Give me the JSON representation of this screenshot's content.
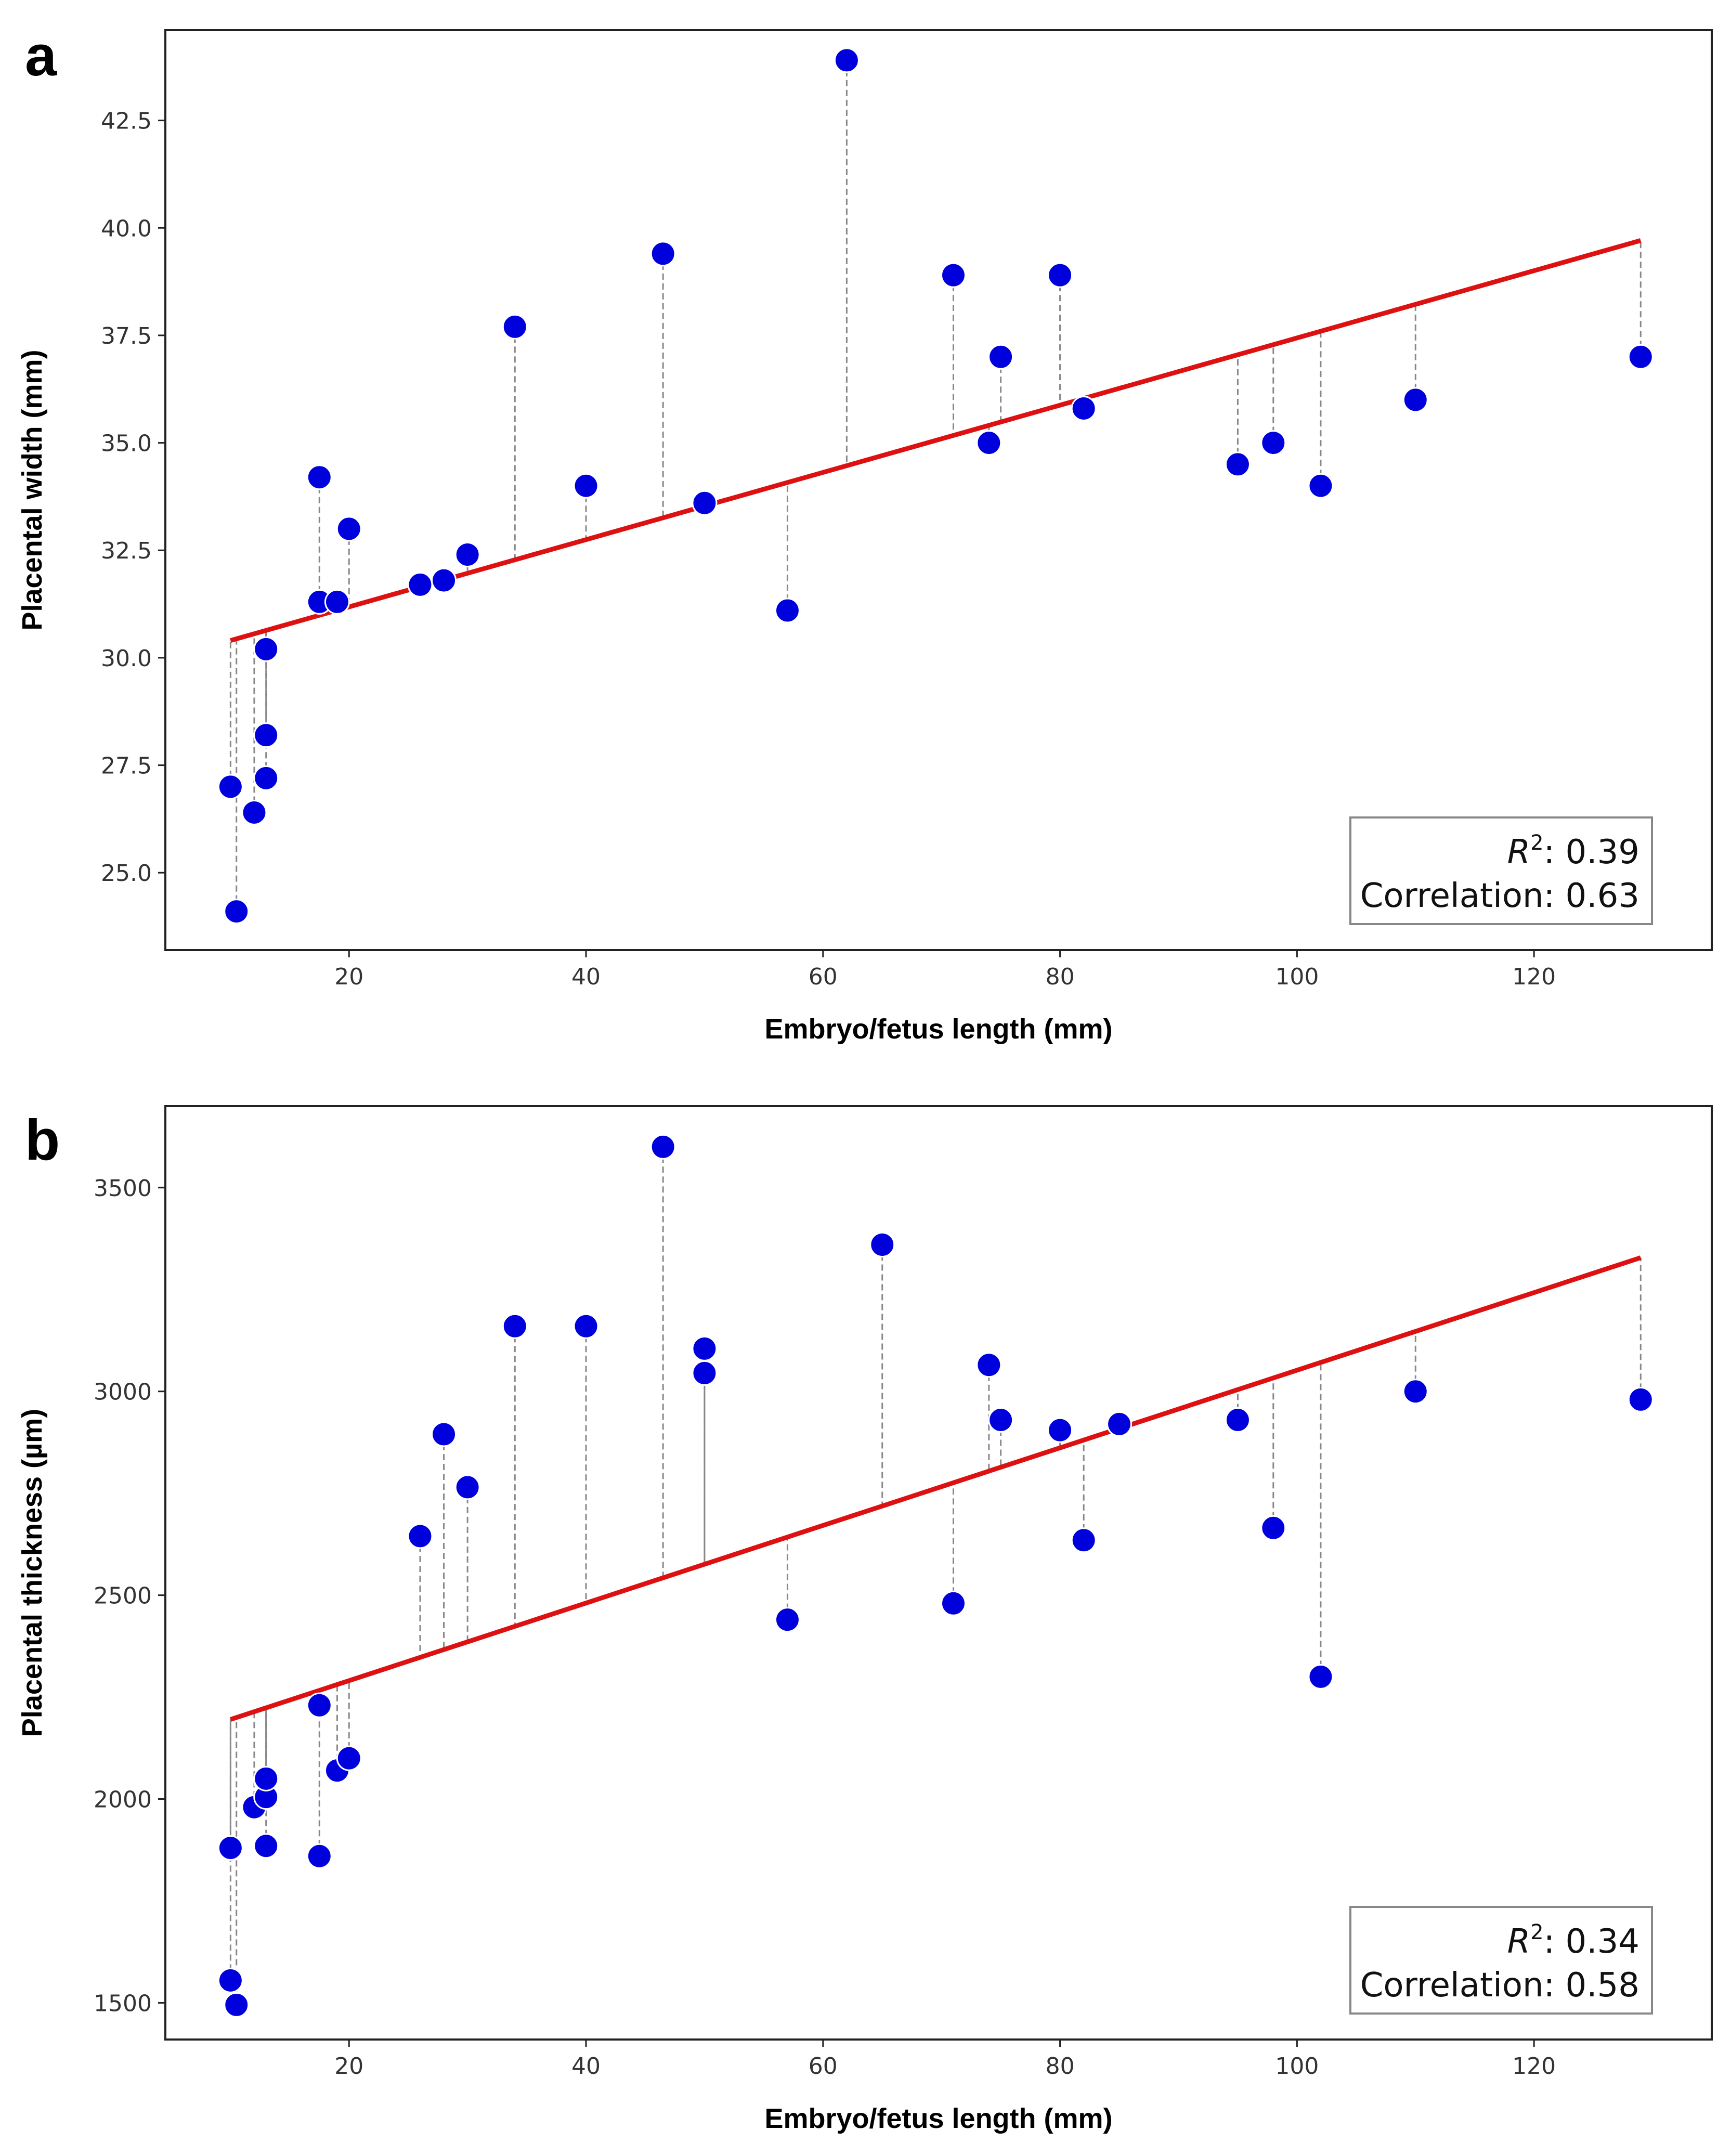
{
  "chart_data": [
    {
      "type": "scatter",
      "panel": "a",
      "title": "",
      "xlabel": "Embryo/fetus length (mm)",
      "ylabel": "Placental width (mm)",
      "xlim": [
        4.5,
        135
      ],
      "ylim": [
        23.2,
        44.6
      ],
      "xticks": [
        20,
        40,
        60,
        80,
        100,
        120
      ],
      "yticks": [
        25.0,
        27.5,
        30.0,
        32.5,
        35.0,
        37.5,
        40.0,
        42.5
      ],
      "grid": false,
      "point_color": "#0000dd",
      "line_color": "#dd1111",
      "residual_color": "#888888",
      "fit": {
        "slope": 0.0782,
        "intercept": 29.62
      },
      "x": [
        10,
        10.5,
        12,
        13,
        13,
        13,
        13,
        17.5,
        17.5,
        19,
        20,
        26,
        28,
        30,
        34,
        40,
        46.5,
        50,
        57,
        62,
        71,
        74,
        75,
        80,
        82,
        95,
        98,
        102,
        110,
        129
      ],
      "y": [
        27.0,
        24.1,
        26.4,
        30.2,
        30.2,
        28.2,
        27.2,
        34.2,
        31.3,
        31.3,
        33.0,
        31.7,
        31.8,
        32.4,
        37.7,
        34.0,
        39.4,
        33.6,
        31.1,
        43.9,
        38.9,
        35.0,
        37.0,
        38.9,
        35.8,
        34.5,
        35.0,
        34.0,
        36.0,
        37.0
      ],
      "stats": {
        "r2_label": "R",
        "r2_sup": "2",
        "r2_value": ": 0.39",
        "correlation": "Correlation: 0.63"
      }
    },
    {
      "type": "scatter",
      "panel": "b",
      "title": "",
      "xlabel": "Embryo/fetus length (mm)",
      "ylabel": "Placental thickness (µm)",
      "xlim": [
        4.5,
        135
      ],
      "ylim": [
        1410,
        3700
      ],
      "xticks": [
        20,
        40,
        60,
        80,
        100,
        120
      ],
      "yticks": [
        1500,
        2000,
        2500,
        3000,
        3500
      ],
      "grid": false,
      "point_color": "#0000dd",
      "line_color": "#dd1111",
      "residual_color": "#888888",
      "fit": {
        "slope": 9.52,
        "intercept": 2100
      },
      "x": [
        10,
        10,
        10.5,
        12,
        13,
        13,
        13,
        13,
        17.5,
        17.5,
        19,
        20,
        26,
        28,
        30,
        34,
        40,
        46.5,
        50,
        50,
        57,
        65,
        71,
        74,
        75,
        80,
        82,
        85,
        95,
        98,
        102,
        110,
        129
      ],
      "y": [
        1880,
        1555,
        1495,
        1980,
        2045,
        2005,
        2050,
        1885,
        2230,
        1860,
        2070,
        2100,
        2645,
        2895,
        2765,
        3160,
        3160,
        3600,
        3105,
        3045,
        2440,
        3360,
        2480,
        3065,
        2930,
        2905,
        2635,
        2920,
        2930,
        2665,
        2300,
        3000,
        2980
      ],
      "stats": {
        "r2_label": "R",
        "r2_sup": "2",
        "r2_value": ": 0.34",
        "correlation": "Correlation: 0.58"
      }
    }
  ]
}
